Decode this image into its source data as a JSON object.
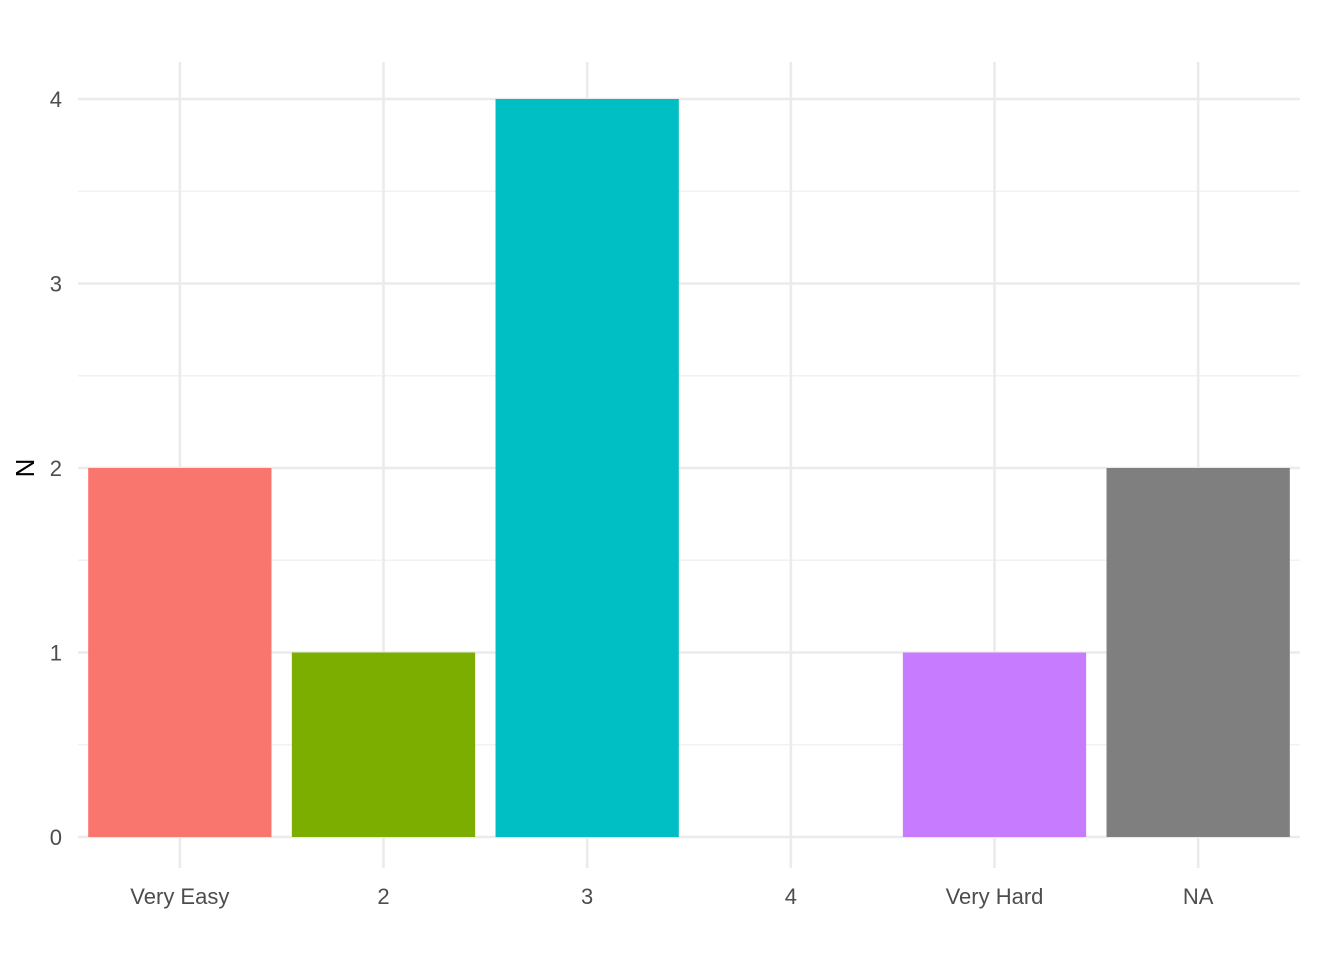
{
  "chart_data": {
    "type": "bar",
    "categories": [
      "Very Easy",
      "2",
      "3",
      "4",
      "Very Hard",
      "NA"
    ],
    "values": [
      2,
      1,
      4,
      0,
      1,
      2
    ],
    "colors": [
      "#F8766D",
      "#7CAE00",
      "#00BFC4",
      "#00BFC4",
      "#C77CFF",
      "#7F7F7F"
    ],
    "title": "",
    "xlabel": "",
    "ylabel": "N",
    "ylim": [
      0,
      4
    ],
    "yticks": [
      "0",
      "1",
      "2",
      "3",
      "4"
    ],
    "grid": true,
    "legend": "none"
  }
}
